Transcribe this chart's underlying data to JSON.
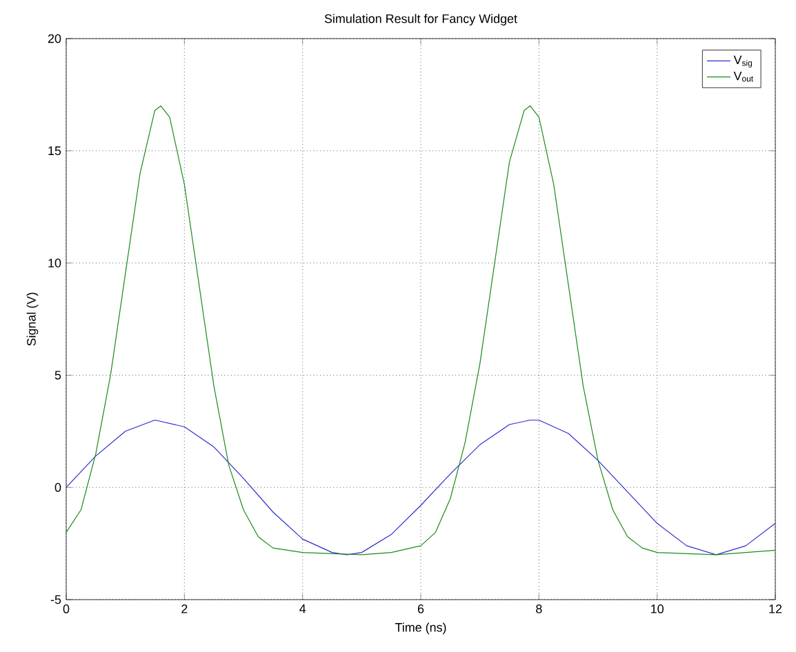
{
  "chart_data": {
    "type": "line",
    "title": "Simulation Result for Fancy Widget",
    "xlabel": "Time (ns)",
    "ylabel": "Signal (V)",
    "xlim": [
      0,
      12
    ],
    "ylim": [
      -5,
      20
    ],
    "xticks": [
      0,
      2,
      4,
      6,
      8,
      10,
      12
    ],
    "yticks": [
      -5,
      0,
      5,
      10,
      15,
      20
    ],
    "grid": true,
    "legend": "top right",
    "line_style": "solid",
    "marker": "none",
    "series": [
      {
        "name": "V$_{sig}$",
        "color": "#2b2bd0",
        "x": [
          0,
          0.5,
          1,
          1.5,
          2,
          2.5,
          3,
          3.5,
          4,
          4.5,
          4.75,
          5,
          5.5,
          6,
          6.5,
          7,
          7.5,
          7.85,
          8,
          8.5,
          9,
          9.5,
          10,
          10.5,
          11,
          11.5,
          12
        ],
        "values": [
          0,
          1.4,
          2.5,
          3,
          2.7,
          1.8,
          0.4,
          -1.1,
          -2.3,
          -2.9,
          -3,
          -2.9,
          -2.1,
          -0.8,
          0.6,
          1.9,
          2.8,
          3,
          3,
          2.4,
          1.2,
          -0.2,
          -1.6,
          -2.6,
          -3,
          -2.6,
          -1.6
        ]
      },
      {
        "name": "V$_{out}$",
        "color": "#1a8a1a",
        "x": [
          0,
          0.25,
          0.5,
          0.75,
          1,
          1.25,
          1.5,
          1.6,
          1.75,
          2,
          2.25,
          2.5,
          2.75,
          3,
          3.25,
          3.5,
          4,
          5,
          5.5,
          6,
          6.25,
          6.5,
          6.75,
          7,
          7.25,
          7.5,
          7.75,
          7.85,
          8,
          8.25,
          8.5,
          8.75,
          9,
          9.25,
          9.5,
          9.75,
          10,
          11,
          12
        ],
        "values": [
          -2,
          -1,
          1.5,
          5,
          9.5,
          14,
          16.8,
          17,
          16.5,
          13.5,
          9,
          4.5,
          1,
          -1,
          -2.2,
          -2.7,
          -2.9,
          -3,
          -2.9,
          -2.6,
          -2,
          -0.5,
          2,
          5.5,
          10,
          14.5,
          16.8,
          17,
          16.5,
          13.5,
          9,
          4.5,
          1.2,
          -1,
          -2.2,
          -2.7,
          -2.9,
          -3,
          -2.8
        ]
      }
    ]
  }
}
